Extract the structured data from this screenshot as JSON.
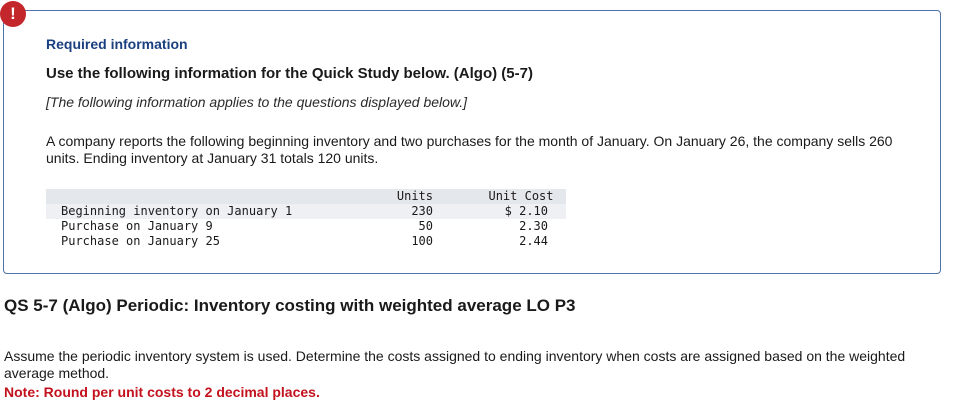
{
  "alert": {
    "icon": "exclamation-icon",
    "glyph": "!",
    "color": "#c3272b"
  },
  "info": {
    "heading": "Required information",
    "title": "Use the following information for the Quick Study below. (Algo) (5-7)",
    "applies": "[The following information applies to the questions displayed below.]",
    "paragraph": "A company reports the following beginning inventory and two purchases for the month of January. On January 26, the company sells 260 units. Ending inventory at January 31 totals 120 units.",
    "border_color": "#4f72a8",
    "table": {
      "headers": {
        "units": "Units",
        "unit_cost": "Unit Cost"
      },
      "rows": [
        {
          "label": "Beginning inventory on January 1",
          "units": "230",
          "unit_cost": "$ 2.10"
        },
        {
          "label": "Purchase on January 9",
          "units": "50",
          "unit_cost": "2.30"
        },
        {
          "label": "Purchase on January 25",
          "units": "100",
          "unit_cost": "2.44"
        }
      ]
    }
  },
  "question": {
    "title": "QS 5-7 (Algo) Periodic: Inventory costing with weighted average LO P3",
    "text": "Assume the periodic inventory system is used. Determine the costs assigned to ending inventory when costs are assigned based on the weighted average method.",
    "note": "Note: Round per unit costs to 2 decimal places.",
    "note_color": "#c3121d"
  }
}
